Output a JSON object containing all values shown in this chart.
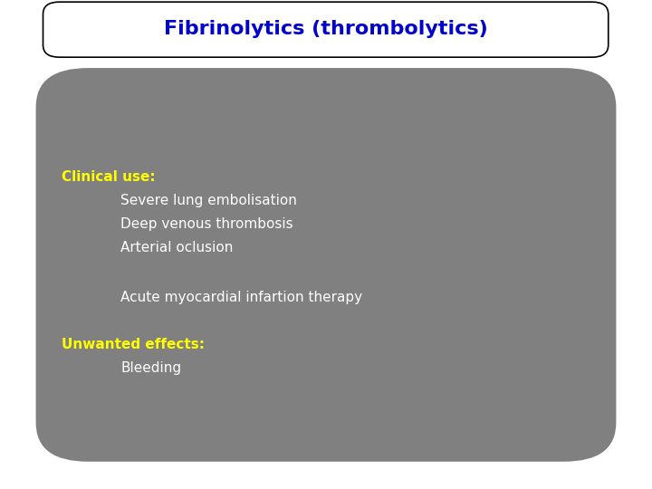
{
  "title": "Fibrinolytics (thrombolytics)",
  "title_color": "#0000cc",
  "title_fontsize": 16,
  "title_box_facecolor": "#ffffff",
  "title_box_edgecolor": "#000000",
  "bg_color": "#ffffff",
  "content_box_color": "#808080",
  "label_color": "#ffff00",
  "body_color": "#ffffff",
  "label_fontsize": 11,
  "body_fontsize": 11,
  "clinical_label": "Clinical use:",
  "clinical_items": [
    "Severe lung embolisation",
    "Deep venous thrombosis",
    "Arterial oclusion"
  ],
  "acute_line": "Acute myocardial infartion therapy",
  "unwanted_label": "Unwanted effects:",
  "unwanted_items": [
    "Bleeding"
  ]
}
